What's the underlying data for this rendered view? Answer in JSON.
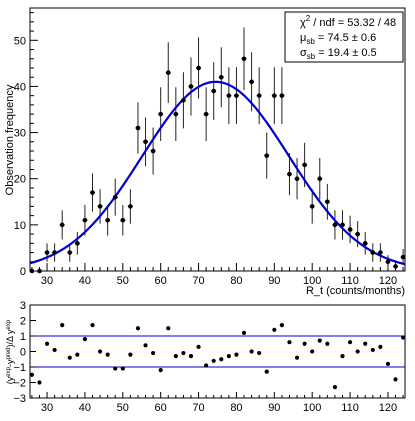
{
  "chart_data": [
    {
      "type": "scatter",
      "title": "",
      "xlabel": "R_t (counts/months)",
      "ylabel": "Observation frequency",
      "xlim": [
        25.5,
        124.5
      ],
      "ylim": [
        0,
        57
      ],
      "xticks": [
        30,
        40,
        50,
        60,
        70,
        80,
        90,
        100,
        110,
        120
      ],
      "yticks": [
        0,
        10,
        20,
        30,
        40,
        50
      ],
      "xtick_labels": [
        "30",
        "40",
        "50",
        "60",
        "70",
        "80",
        "90",
        "100",
        "110",
        "120"
      ],
      "ytick_labels": [
        "0",
        "10",
        "20",
        "30",
        "40",
        "50"
      ],
      "grid": false,
      "legend_position": "top-right",
      "legend": {
        "chi2_label": "χ",
        "chi2_exp": "2",
        "chi2_value": " / ndf = 53.32 / 48",
        "mu_label": "μ",
        "mu_sub": "sb",
        "mu_value": " = 74.5 ± 0.6",
        "sigma_label": "σ",
        "sigma_sub": "sb",
        "sigma_value": " = 19.4 ± 0.5"
      },
      "fit": {
        "name": "",
        "type": "gaussian",
        "amplitude": 41,
        "mean": 74.5,
        "sigma": 19.4,
        "color": "#0000cc"
      },
      "marker_color": "#000000",
      "x": [
        26,
        28,
        30,
        32,
        34,
        36,
        38,
        40,
        42,
        44,
        46,
        48,
        50,
        52,
        54,
        56,
        58,
        60,
        62,
        64,
        66,
        68,
        70,
        72,
        74,
        76,
        78,
        80,
        82,
        84,
        86,
        88,
        90,
        92,
        94,
        96,
        98,
        100,
        102,
        104,
        106,
        108,
        110,
        112,
        114,
        116,
        118,
        120,
        122,
        124
      ],
      "y": [
        0,
        0,
        4,
        4,
        10,
        4,
        6,
        11,
        17,
        14,
        11,
        16,
        11,
        14,
        31,
        28,
        26,
        34,
        43,
        34,
        37,
        40,
        44,
        34,
        39,
        42,
        38,
        38,
        46,
        41,
        38,
        25,
        38,
        38,
        21,
        20,
        23,
        14,
        20,
        15,
        10,
        10,
        9,
        8,
        6,
        4,
        4,
        2,
        1,
        3
      ]
    },
    {
      "type": "scatter",
      "title": "",
      "xlabel": "",
      "ylabel": "(y^exp - y^pred) / Δ y^exp",
      "ylabel_parts": {
        "open": "(y",
        "exp1": "exp",
        "minus": "-y",
        "pred": "pred",
        "close": ")",
        "slash": "/",
        "delta": "Δ y",
        "exp2": "exp"
      },
      "xlim": [
        25.5,
        124.5
      ],
      "ylim": [
        -3,
        3
      ],
      "xticks": [
        30,
        40,
        50,
        60,
        70,
        80,
        90,
        100,
        110,
        120
      ],
      "yticks": [
        -3,
        -2,
        -1,
        0,
        1,
        2,
        3
      ],
      "xtick_labels": [
        "30",
        "40",
        "50",
        "60",
        "70",
        "80",
        "90",
        "100",
        "110",
        "120"
      ],
      "ytick_labels": [
        "−3",
        "−2",
        "−1",
        "0",
        "1",
        "2",
        "3"
      ],
      "grid": false,
      "reference_lines": [
        1,
        -1
      ],
      "reference_color": "#0000cc",
      "x": [
        26,
        28,
        30,
        32,
        34,
        36,
        38,
        40,
        42,
        44,
        46,
        48,
        50,
        52,
        54,
        56,
        58,
        60,
        62,
        64,
        66,
        68,
        70,
        72,
        74,
        76,
        78,
        80,
        82,
        84,
        86,
        88,
        90,
        92,
        94,
        96,
        98,
        100,
        102,
        104,
        106,
        108,
        110,
        112,
        114,
        116,
        118,
        120,
        122,
        124
      ],
      "y": [
        -1.5,
        -2.0,
        0.5,
        0.1,
        1.7,
        -0.4,
        -0.2,
        0.8,
        1.7,
        0.0,
        -0.2,
        -1.1,
        -1.1,
        -0.2,
        1.5,
        0.4,
        -0.1,
        -1.2,
        1.5,
        -0.3,
        -0.1,
        -0.3,
        0.3,
        -0.9,
        -0.6,
        -0.5,
        -0.3,
        -0.2,
        1.2,
        0.0,
        -0.1,
        -1.3,
        1.4,
        1.7,
        0.6,
        -0.4,
        0.5,
        0.0,
        0.7,
        0.5,
        -2.3,
        -0.3,
        0.6,
        0.0,
        0.5,
        0.1,
        0.3,
        -0.8,
        -1.8,
        0.9
      ]
    }
  ]
}
